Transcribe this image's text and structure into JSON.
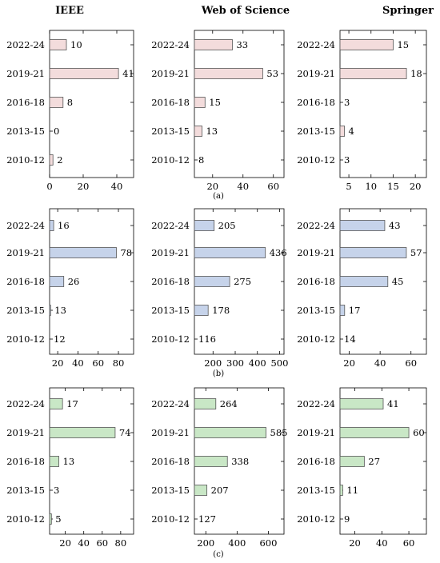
{
  "columns": [
    "IEEE",
    "Web of Science",
    "Springer"
  ],
  "captions": [
    "(a)",
    "(b)",
    "(c)"
  ],
  "colors": {
    "a": "#f3dcdc",
    "b": "#c6d3ea",
    "c": "#c9e7c6",
    "stroke": "#555555"
  },
  "chart_data": [
    {
      "type": "bar",
      "orientation": "horizontal",
      "group": "a",
      "title": "IEEE",
      "categories": [
        "2022-24",
        "2019-21",
        "2016-18",
        "2013-15",
        "2010-12"
      ],
      "values": [
        10,
        41,
        8,
        0,
        2
      ],
      "xlim": [
        0,
        50
      ],
      "xticks": [
        0,
        20,
        40
      ]
    },
    {
      "type": "bar",
      "orientation": "horizontal",
      "group": "a",
      "title": "Web of Science",
      "categories": [
        "2022-24",
        "2019-21",
        "2016-18",
        "2013-15",
        "2010-12"
      ],
      "values": [
        33,
        53,
        15,
        13,
        8
      ],
      "xlim": [
        8,
        67
      ],
      "xticks": [
        20,
        40,
        60
      ]
    },
    {
      "type": "bar",
      "orientation": "horizontal",
      "group": "a",
      "title": "Springer",
      "categories": [
        "2022-24",
        "2019-21",
        "2016-18",
        "2013-15",
        "2010-12"
      ],
      "values": [
        15,
        18,
        3,
        4,
        3
      ],
      "xlim": [
        3,
        22.5
      ],
      "xticks": [
        5,
        10,
        15,
        20
      ]
    },
    {
      "type": "bar",
      "orientation": "horizontal",
      "group": "b",
      "title": "",
      "categories": [
        "2022-24",
        "2019-21",
        "2016-18",
        "2013-15",
        "2010-12"
      ],
      "values": [
        16,
        78,
        26,
        13,
        12
      ],
      "xlim": [
        12,
        95
      ],
      "xticks": [
        20,
        40,
        60,
        80
      ]
    },
    {
      "type": "bar",
      "orientation": "horizontal",
      "group": "b",
      "title": "",
      "categories": [
        "2022-24",
        "2019-21",
        "2016-18",
        "2013-15",
        "2010-12"
      ],
      "values": [
        205,
        436,
        275,
        178,
        116
      ],
      "xlim": [
        116,
        520
      ],
      "xticks": [
        200,
        300,
        400,
        500
      ]
    },
    {
      "type": "bar",
      "orientation": "horizontal",
      "group": "b",
      "title": "",
      "categories": [
        "2022-24",
        "2019-21",
        "2016-18",
        "2013-15",
        "2010-12"
      ],
      "values": [
        43,
        57,
        45,
        17,
        14
      ],
      "xlim": [
        14,
        70
      ],
      "xticks": [
        20,
        40,
        60
      ]
    },
    {
      "type": "bar",
      "orientation": "horizontal",
      "group": "c",
      "title": "",
      "categories": [
        "2022-24",
        "2019-21",
        "2016-18",
        "2013-15",
        "2010-12"
      ],
      "values": [
        17,
        74,
        13,
        3,
        5
      ],
      "xlim": [
        3,
        94
      ],
      "xticks": [
        20,
        40,
        60,
        80
      ]
    },
    {
      "type": "bar",
      "orientation": "horizontal",
      "group": "c",
      "title": "",
      "categories": [
        "2022-24",
        "2019-21",
        "2016-18",
        "2013-15",
        "2010-12"
      ],
      "values": [
        264,
        585,
        338,
        207,
        127
      ],
      "xlim": [
        127,
        700
      ],
      "xticks": [
        200,
        400,
        600
      ]
    },
    {
      "type": "bar",
      "orientation": "horizontal",
      "group": "c",
      "title": "",
      "categories": [
        "2022-24",
        "2019-21",
        "2016-18",
        "2013-15",
        "2010-12"
      ],
      "values": [
        41,
        60,
        27,
        11,
        9
      ],
      "xlim": [
        9,
        73
      ],
      "xticks": [
        20,
        40,
        60
      ]
    }
  ]
}
